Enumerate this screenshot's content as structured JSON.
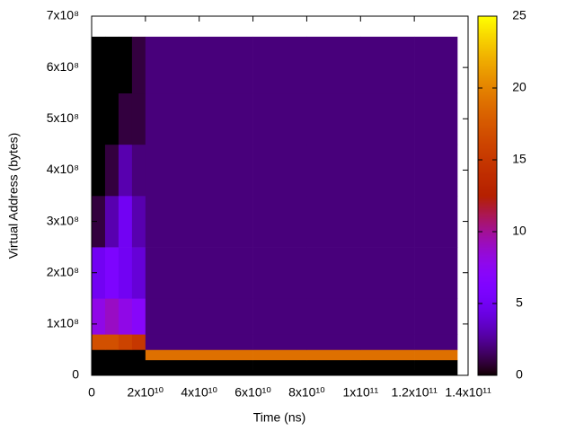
{
  "chart_data": {
    "type": "heatmap",
    "x_label": "Time (ns)",
    "y_label": "Virtual Address (bytes)",
    "x_edges": [
      0,
      5000000000,
      10000000000,
      15000000000,
      20000000000,
      40000000000,
      60000000000,
      80000000000,
      100000000000,
      120000000000,
      136000000000
    ],
    "y_edges": [
      0,
      30000000,
      50000000,
      80000000,
      150000000,
      250000000,
      350000000,
      450000000,
      550000000,
      660000000
    ],
    "z": [
      [
        0,
        0,
        0,
        0,
        0,
        0,
        0,
        0,
        0,
        0
      ],
      [
        0,
        0,
        0,
        0,
        19,
        19,
        19,
        19,
        19,
        19
      ],
      [
        17,
        17,
        16,
        15,
        2,
        2,
        2,
        2,
        2,
        2
      ],
      [
        8,
        9,
        8,
        7,
        2,
        2,
        2,
        2,
        2,
        2
      ],
      [
        5,
        6,
        5,
        4,
        2,
        2,
        2,
        2,
        2,
        2
      ],
      [
        1,
        3,
        5,
        3,
        2,
        2,
        2,
        2,
        2,
        2
      ],
      [
        0,
        1,
        3,
        2,
        2,
        2,
        2,
        2,
        2,
        2
      ],
      [
        0,
        0,
        1,
        1,
        2,
        2,
        2,
        2,
        2,
        2
      ],
      [
        0,
        0,
        0,
        1,
        2,
        2,
        2,
        2,
        2,
        2
      ]
    ],
    "xlim": [
      0,
      140000000000
    ],
    "xticks": [
      0,
      {
        "value": 20000000000,
        "label": "2x10¹⁰"
      },
      {
        "value": 40000000000,
        "label": "4x10¹⁰"
      },
      {
        "value": 60000000000,
        "label": "6x10¹⁰"
      },
      {
        "value": 80000000000,
        "label": "8x10¹⁰"
      },
      {
        "value": 100000000000,
        "label": "1x10¹¹"
      },
      {
        "value": 120000000000,
        "label": "1.2x10¹¹"
      },
      {
        "value": 140000000000,
        "label": "1.4x10¹¹"
      }
    ],
    "ylim": [
      0,
      700000000
    ],
    "yticks": [
      0,
      {
        "value": 100000000,
        "label": "1x10⁸"
      },
      {
        "value": 200000000,
        "label": "2x10⁸"
      },
      {
        "value": 300000000,
        "label": "3x10⁸"
      },
      {
        "value": 400000000,
        "label": "4x10⁸"
      },
      {
        "value": 500000000,
        "label": "5x10⁸"
      },
      {
        "value": 600000000,
        "label": "6x10⁸"
      },
      {
        "value": 700000000,
        "label": "7x10⁸"
      }
    ],
    "cblim": [
      0,
      25
    ],
    "cbticks": [
      0,
      5,
      10,
      15,
      20,
      25
    ],
    "palette": "gnuplot-default"
  }
}
